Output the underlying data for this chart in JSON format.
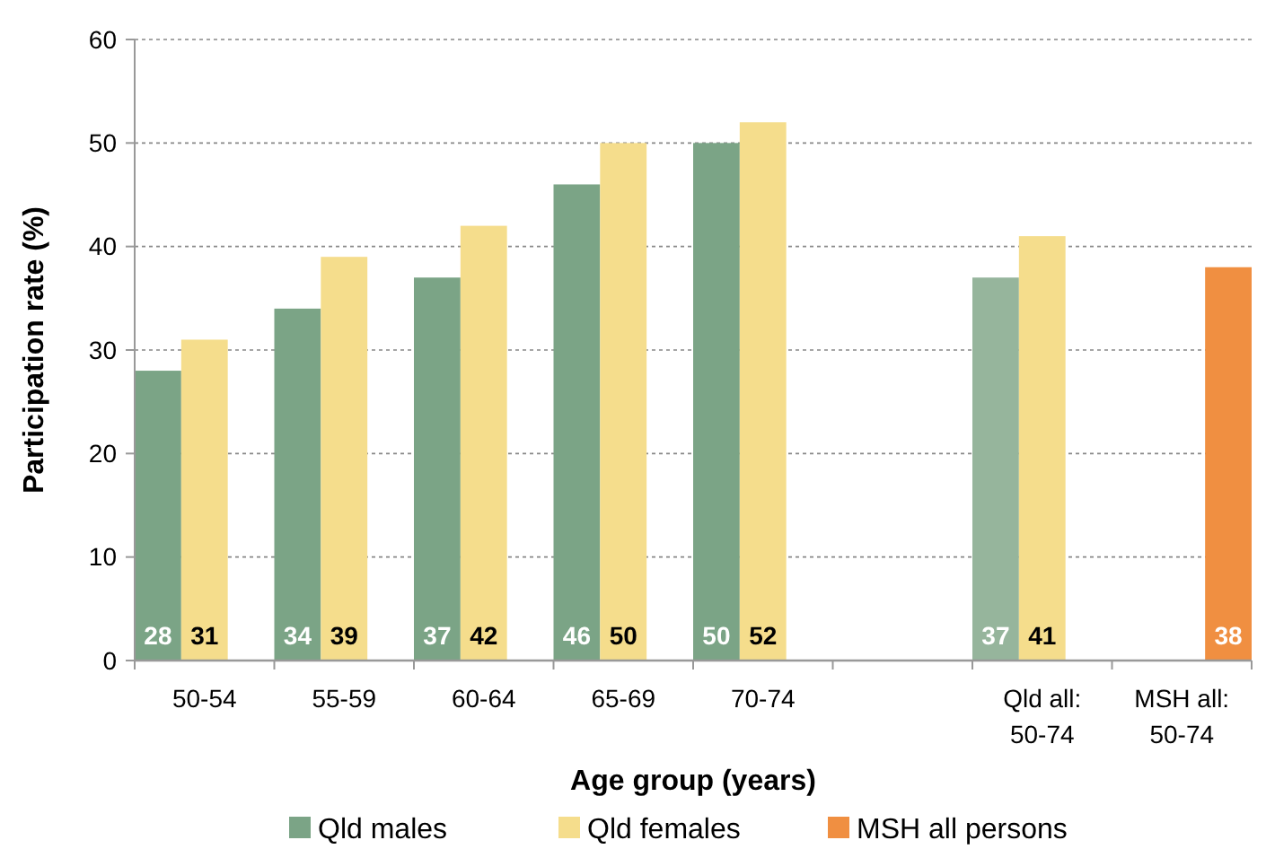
{
  "chart_data": {
    "type": "bar",
    "xlabel": "Age group (years)",
    "ylabel": "Participation rate (%)",
    "categories": [
      "50-54",
      "55-59",
      "60-64",
      "65-69",
      "70-74",
      null,
      "Qld all: 50-74",
      "MSH all: 50-74"
    ],
    "series": [
      {
        "name": "Qld males",
        "color": "#7ba486",
        "colors": [
          "#7ba486",
          "#7ba486",
          "#7ba486",
          "#7ba486",
          "#7ba486",
          null,
          "#96b59c",
          null
        ],
        "values": [
          28,
          34,
          37,
          46,
          50,
          null,
          37,
          null
        ]
      },
      {
        "name": "Qld females",
        "color": "#f5dd8c",
        "values": [
          31,
          39,
          42,
          50,
          52,
          null,
          41,
          null
        ]
      },
      {
        "name": "MSH all persons",
        "color": "#f08f41",
        "values": [
          null,
          null,
          null,
          null,
          null,
          null,
          null,
          38
        ]
      }
    ],
    "ylim": [
      0,
      60
    ],
    "yticks": [
      0,
      10,
      20,
      30,
      40,
      50,
      60
    ],
    "grid": "y",
    "legend": "bottom",
    "data_labels": true
  }
}
